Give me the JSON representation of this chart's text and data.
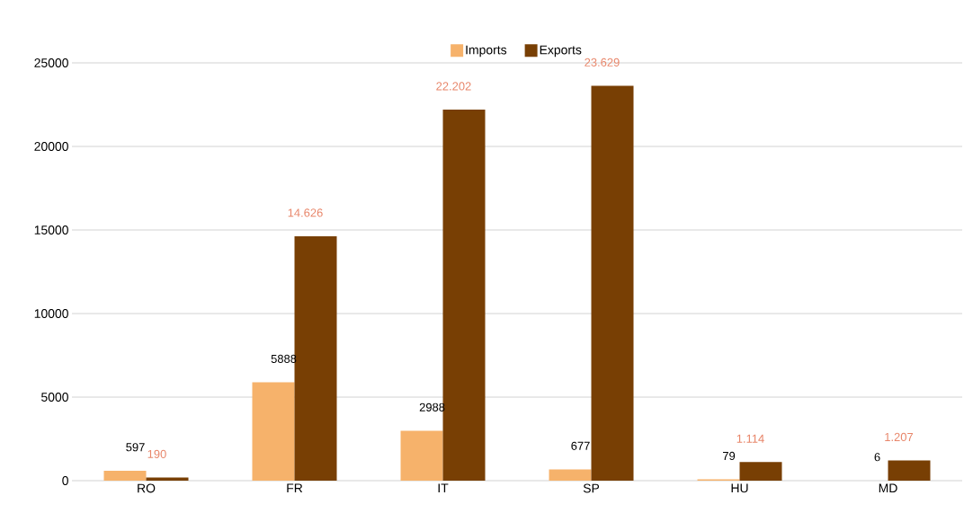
{
  "chart_data": {
    "type": "bar",
    "categories": [
      "RO",
      "FR",
      "IT",
      "SP",
      "HU",
      "MD"
    ],
    "series": [
      {
        "name": "Imports",
        "color": "#f6b26b",
        "values": [
          597,
          5888,
          2988,
          677,
          79,
          6
        ],
        "value_labels": [
          "597",
          "5888",
          "2988",
          "677",
          "79",
          "6"
        ]
      },
      {
        "name": "Exports",
        "color": "#783f04",
        "values": [
          190,
          14626,
          22202,
          23629,
          1114,
          1207
        ],
        "value_labels": [
          "190",
          "14.626",
          "22.202",
          "23.629",
          "1.114",
          "1.207"
        ]
      }
    ],
    "ylim": [
      0,
      25000
    ],
    "yticks": [
      0,
      5000,
      10000,
      15000,
      20000,
      25000
    ],
    "grid": "y",
    "legend": "top"
  }
}
